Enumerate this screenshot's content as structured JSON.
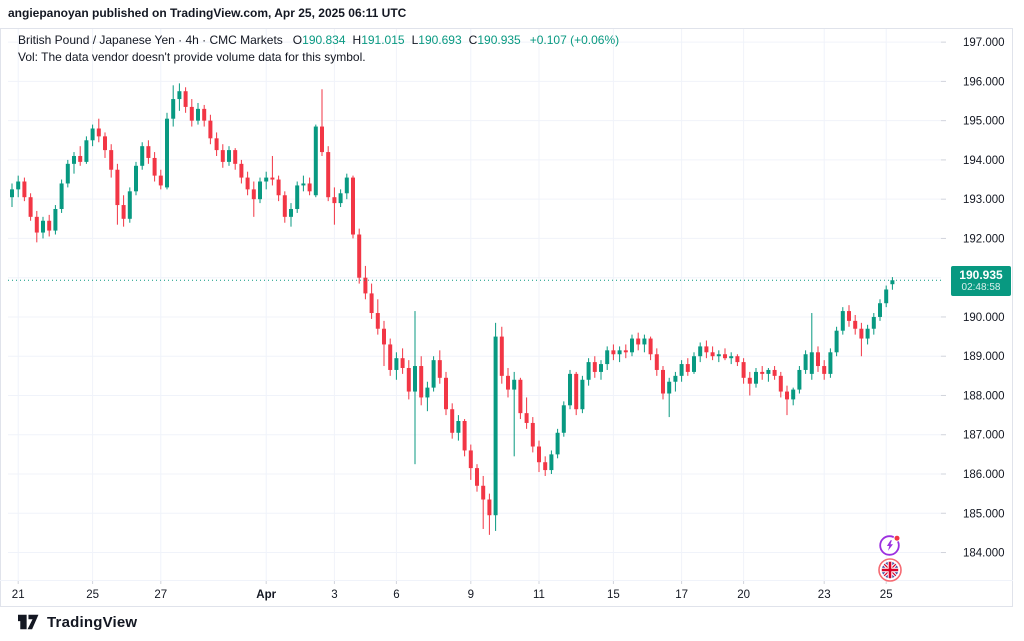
{
  "header": {
    "publish_line": "angiepanoyan published on TradingView.com, Apr 25, 2025 06:11 UTC"
  },
  "legend": {
    "title": "British Pound / Japanese Yen · 4h · CMC Markets",
    "ohlc": {
      "o_label": "O",
      "o": "190.834",
      "h_label": "H",
      "h": "191.015",
      "l_label": "L",
      "l": "190.693",
      "c_label": "C",
      "c": "190.935",
      "change": "+0.107 (+0.06%)"
    },
    "vol_note": "Vol: The data vendor doesn't provide volume data for this symbol."
  },
  "price_badge": {
    "price": "190.935",
    "countdown": "02:48:58"
  },
  "footer": {
    "brand": "TradingView"
  },
  "icons": {
    "quick_action": "lightning-icon",
    "symbol_flag": "uk-flag-icon"
  },
  "chart_data": {
    "type": "candlestick",
    "title": "British Pound / Japanese Yen",
    "interval": "4h",
    "source": "CMC Markets",
    "ylim": [
      183.3,
      197.36
    ],
    "grid": true,
    "y_grid": [
      197,
      196,
      195,
      194,
      193,
      192,
      191,
      190,
      189,
      188,
      187,
      186,
      185,
      184
    ],
    "y_tick_labels": [
      {
        "text": "197.000",
        "p": 197
      },
      {
        "text": "196.000",
        "p": 196
      },
      {
        "text": "195.000",
        "p": 195
      },
      {
        "text": "194.000",
        "p": 194
      },
      {
        "text": "193.000",
        "p": 193
      },
      {
        "text": "192.000",
        "p": 192
      },
      {
        "text": "190.000",
        "p": 190
      },
      {
        "text": "189.000",
        "p": 189
      },
      {
        "text": "188.000",
        "p": 188
      },
      {
        "text": "187.000",
        "p": 187
      },
      {
        "text": "186.000",
        "p": 186
      },
      {
        "text": "185.000",
        "p": 185
      },
      {
        "text": "184.000",
        "p": 184
      }
    ],
    "x_ticks": [
      {
        "label": "21",
        "index": 1
      },
      {
        "label": "25",
        "index": 13
      },
      {
        "label": "27",
        "index": 24
      },
      {
        "label": "Apr",
        "index": 41,
        "bold": true
      },
      {
        "label": "3",
        "index": 52
      },
      {
        "label": "6",
        "index": 62
      },
      {
        "label": "9",
        "index": 74
      },
      {
        "label": "11",
        "index": 85
      },
      {
        "label": "15",
        "index": 97
      },
      {
        "label": "17",
        "index": 108
      },
      {
        "label": "20",
        "index": 118
      },
      {
        "label": "23",
        "index": 131
      },
      {
        "label": "25",
        "index": 141
      }
    ],
    "last_price": 190.935,
    "colors": {
      "up": "#089981",
      "down": "#f23645",
      "grid": "#f0f3fa",
      "frame": "#e0e3eb",
      "axis_text": "#131722",
      "tick": "#d1d4dc",
      "last_price_line": "#089981",
      "badge_bg": "#089981",
      "icon_purple": "#9c2fe0",
      "icon_red": "#f23645",
      "flag_blue": "#41479b",
      "flag_red": "#d80027"
    },
    "candles": [
      [
        193.05,
        193.4,
        192.8,
        193.25
      ],
      [
        193.25,
        193.6,
        193.05,
        193.45
      ],
      [
        193.45,
        193.55,
        192.95,
        193.05
      ],
      [
        193.05,
        193.15,
        192.45,
        192.55
      ],
      [
        192.55,
        192.7,
        191.9,
        192.15
      ],
      [
        192.15,
        192.55,
        192.0,
        192.45
      ],
      [
        192.45,
        192.6,
        192.05,
        192.2
      ],
      [
        192.2,
        192.85,
        192.1,
        192.75
      ],
      [
        192.75,
        193.5,
        192.65,
        193.4
      ],
      [
        193.4,
        194.0,
        193.3,
        193.9
      ],
      [
        193.9,
        194.2,
        193.65,
        194.1
      ],
      [
        194.1,
        194.35,
        193.85,
        193.95
      ],
      [
        193.95,
        194.6,
        193.9,
        194.5
      ],
      [
        194.5,
        194.9,
        194.35,
        194.8
      ],
      [
        194.8,
        195.05,
        194.45,
        194.6
      ],
      [
        194.6,
        194.7,
        194.05,
        194.25
      ],
      [
        194.25,
        194.4,
        193.55,
        193.75
      ],
      [
        193.75,
        193.9,
        192.35,
        192.85
      ],
      [
        192.85,
        193.1,
        192.3,
        192.5
      ],
      [
        192.5,
        193.3,
        192.4,
        193.2
      ],
      [
        193.2,
        193.95,
        193.1,
        193.85
      ],
      [
        193.85,
        194.45,
        193.75,
        194.35
      ],
      [
        194.35,
        194.5,
        193.9,
        194.05
      ],
      [
        194.05,
        194.2,
        193.45,
        193.6
      ],
      [
        193.6,
        193.75,
        193.25,
        193.35
      ],
      [
        193.3,
        195.2,
        193.25,
        195.05
      ],
      [
        195.05,
        195.9,
        194.85,
        195.55
      ],
      [
        195.55,
        195.95,
        195.25,
        195.75
      ],
      [
        195.75,
        195.85,
        195.2,
        195.35
      ],
      [
        195.35,
        195.55,
        194.85,
        195.0
      ],
      [
        195.0,
        195.45,
        194.9,
        195.3
      ],
      [
        195.3,
        195.4,
        194.85,
        195.0
      ],
      [
        195.0,
        195.15,
        194.4,
        194.55
      ],
      [
        194.55,
        194.7,
        194.1,
        194.25
      ],
      [
        194.25,
        194.4,
        193.8,
        193.95
      ],
      [
        193.95,
        194.35,
        193.85,
        194.25
      ],
      [
        194.25,
        194.3,
        193.75,
        193.9
      ],
      [
        193.9,
        194.0,
        193.4,
        193.55
      ],
      [
        193.55,
        193.7,
        193.1,
        193.25
      ],
      [
        193.25,
        193.45,
        192.55,
        193.0
      ],
      [
        193.0,
        193.55,
        192.9,
        193.45
      ],
      [
        193.45,
        193.7,
        193.25,
        193.55
      ],
      [
        193.55,
        194.1,
        193.35,
        193.5
      ],
      [
        193.5,
        193.6,
        192.95,
        193.1
      ],
      [
        193.1,
        193.2,
        192.4,
        192.55
      ],
      [
        192.55,
        192.9,
        192.3,
        192.75
      ],
      [
        192.75,
        193.45,
        192.65,
        193.35
      ],
      [
        193.35,
        193.6,
        193.2,
        193.4
      ],
      [
        193.4,
        193.55,
        193.1,
        193.2
      ],
      [
        193.1,
        194.9,
        193.05,
        194.85
      ],
      [
        194.85,
        195.8,
        194.1,
        194.2
      ],
      [
        194.2,
        194.35,
        192.95,
        193.05
      ],
      [
        193.05,
        193.3,
        192.35,
        192.9
      ],
      [
        192.9,
        193.25,
        192.8,
        193.15
      ],
      [
        193.15,
        193.65,
        193.0,
        193.55
      ],
      [
        193.55,
        193.6,
        192.0,
        192.1
      ],
      [
        192.1,
        192.25,
        190.85,
        191.0
      ],
      [
        191.0,
        191.3,
        190.45,
        190.6
      ],
      [
        190.6,
        190.85,
        189.95,
        190.1
      ],
      [
        190.1,
        190.45,
        189.55,
        189.7
      ],
      [
        189.7,
        189.9,
        188.75,
        189.3
      ],
      [
        189.3,
        189.45,
        188.5,
        188.65
      ],
      [
        188.65,
        189.1,
        188.4,
        188.95
      ],
      [
        188.95,
        189.2,
        188.55,
        188.7
      ],
      [
        188.7,
        188.9,
        187.9,
        188.1
      ],
      [
        188.1,
        190.15,
        186.25,
        188.75
      ],
      [
        188.75,
        189.0,
        187.75,
        187.95
      ],
      [
        187.95,
        188.35,
        187.6,
        188.2
      ],
      [
        188.2,
        189.0,
        188.1,
        188.9
      ],
      [
        188.9,
        189.15,
        188.3,
        188.45
      ],
      [
        188.45,
        188.6,
        187.5,
        187.65
      ],
      [
        187.65,
        187.8,
        186.9,
        187.05
      ],
      [
        187.05,
        187.5,
        186.85,
        187.35
      ],
      [
        187.35,
        187.4,
        186.45,
        186.6
      ],
      [
        186.6,
        186.75,
        185.85,
        186.15
      ],
      [
        186.15,
        186.25,
        185.55,
        185.7
      ],
      [
        185.7,
        185.95,
        184.6,
        185.35
      ],
      [
        185.35,
        185.5,
        184.45,
        184.95
      ],
      [
        184.95,
        189.85,
        184.55,
        189.5
      ],
      [
        189.5,
        189.75,
        188.3,
        188.5
      ],
      [
        188.5,
        188.7,
        187.95,
        188.15
      ],
      [
        188.15,
        188.6,
        186.45,
        188.4
      ],
      [
        188.4,
        188.45,
        187.4,
        187.55
      ],
      [
        187.55,
        187.95,
        187.15,
        187.3
      ],
      [
        187.3,
        187.45,
        186.55,
        186.7
      ],
      [
        186.7,
        186.85,
        186.05,
        186.3
      ],
      [
        186.3,
        186.45,
        185.95,
        186.1
      ],
      [
        186.1,
        186.6,
        186.0,
        186.5
      ],
      [
        186.5,
        187.15,
        186.4,
        187.05
      ],
      [
        187.05,
        187.85,
        186.95,
        187.75
      ],
      [
        187.75,
        188.65,
        187.65,
        188.55
      ],
      [
        188.55,
        188.6,
        187.5,
        187.65
      ],
      [
        187.65,
        188.5,
        187.55,
        188.4
      ],
      [
        188.4,
        188.95,
        188.25,
        188.85
      ],
      [
        188.85,
        189.0,
        188.45,
        188.6
      ],
      [
        188.6,
        188.9,
        188.4,
        188.8
      ],
      [
        188.8,
        189.25,
        188.65,
        189.15
      ],
      [
        189.15,
        189.3,
        188.9,
        189.05
      ],
      [
        189.05,
        189.25,
        188.85,
        189.15
      ],
      [
        189.15,
        189.3,
        188.95,
        189.1
      ],
      [
        189.1,
        189.55,
        189.0,
        189.45
      ],
      [
        189.45,
        189.6,
        189.15,
        189.3
      ],
      [
        189.3,
        189.55,
        189.1,
        189.45
      ],
      [
        189.45,
        189.5,
        188.9,
        189.05
      ],
      [
        189.05,
        189.2,
        188.5,
        188.65
      ],
      [
        188.65,
        188.75,
        187.9,
        188.05
      ],
      [
        188.05,
        188.45,
        187.45,
        188.35
      ],
      [
        188.35,
        188.6,
        188.1,
        188.5
      ],
      [
        188.5,
        188.9,
        188.35,
        188.8
      ],
      [
        188.8,
        188.95,
        188.5,
        188.6
      ],
      [
        188.6,
        189.1,
        188.55,
        189.0
      ],
      [
        189.0,
        189.35,
        188.85,
        189.25
      ],
      [
        189.25,
        189.4,
        188.95,
        189.1
      ],
      [
        189.1,
        189.25,
        188.9,
        189.0
      ],
      [
        189.0,
        189.15,
        188.85,
        189.05
      ],
      [
        189.05,
        189.2,
        188.9,
        188.95
      ],
      [
        188.95,
        189.1,
        188.8,
        189.0
      ],
      [
        189.0,
        189.05,
        188.75,
        188.85
      ],
      [
        188.85,
        188.95,
        188.3,
        188.45
      ],
      [
        188.45,
        188.6,
        188.0,
        188.3
      ],
      [
        188.3,
        188.7,
        188.2,
        188.6
      ],
      [
        188.6,
        188.75,
        188.4,
        188.55
      ],
      [
        188.55,
        188.7,
        188.35,
        188.65
      ],
      [
        188.65,
        188.75,
        188.4,
        188.5
      ],
      [
        188.5,
        188.6,
        187.95,
        188.1
      ],
      [
        188.1,
        188.25,
        187.5,
        187.9
      ],
      [
        187.9,
        188.2,
        187.75,
        188.15
      ],
      [
        188.15,
        188.75,
        188.05,
        188.65
      ],
      [
        188.65,
        189.15,
        188.55,
        189.05
      ],
      [
        188.55,
        190.1,
        188.4,
        189.1
      ],
      [
        189.1,
        189.25,
        188.6,
        188.75
      ],
      [
        188.75,
        188.9,
        188.4,
        188.55
      ],
      [
        188.55,
        189.2,
        188.45,
        189.1
      ],
      [
        189.1,
        189.75,
        189.0,
        189.65
      ],
      [
        189.65,
        190.25,
        189.55,
        190.15
      ],
      [
        190.15,
        190.3,
        189.75,
        189.9
      ],
      [
        189.9,
        190.05,
        189.55,
        189.7
      ],
      [
        189.7,
        189.85,
        189.0,
        189.45
      ],
      [
        189.45,
        189.8,
        189.3,
        189.7
      ],
      [
        189.7,
        190.1,
        189.55,
        190.0
      ],
      [
        190.0,
        190.45,
        189.9,
        190.35
      ],
      [
        190.35,
        190.8,
        190.25,
        190.7
      ],
      [
        190.834,
        191.015,
        190.693,
        190.935
      ]
    ]
  }
}
